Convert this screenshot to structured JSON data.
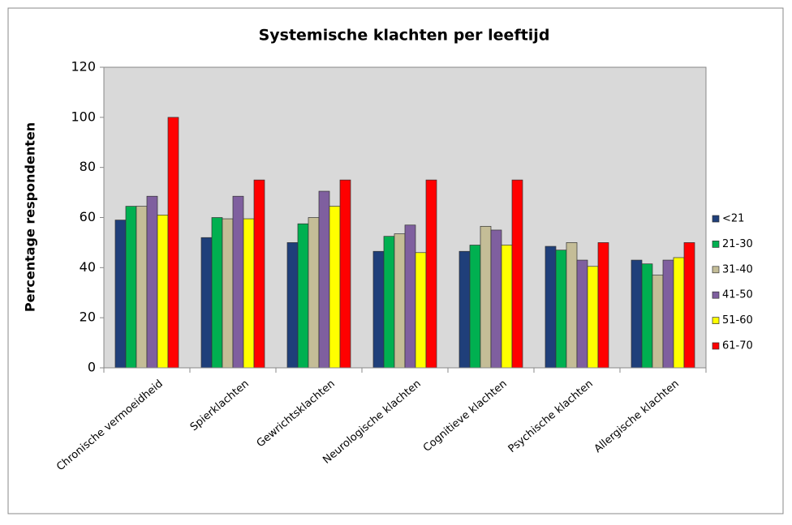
{
  "chart_data": {
    "type": "bar",
    "title": "Systemische klachten per leeftijd",
    "y_label": "Percentage respondenten",
    "categories": [
      "Chronische vermoeidheid",
      "Spierklachten",
      "Gewrichtsklachten",
      "Neurologische klachten",
      "Cognitieve klachten",
      "Psychische klachten",
      "Allergische klachten"
    ],
    "series": [
      {
        "name": "<21",
        "color": "#1f3f7a",
        "values": [
          59,
          52,
          50,
          46.5,
          46.5,
          48.5,
          43
        ]
      },
      {
        "name": "21-30",
        "color": "#00b050",
        "values": [
          64.5,
          60,
          57.5,
          52.5,
          49,
          47,
          41.5
        ]
      },
      {
        "name": "31-40",
        "color": "#c4bd97",
        "values": [
          64.5,
          59.5,
          60,
          53.5,
          56.5,
          50,
          37
        ]
      },
      {
        "name": "41-50",
        "color": "#7f5f9f",
        "values": [
          68.5,
          68.5,
          70.5,
          57,
          55,
          43,
          43
        ]
      },
      {
        "name": "51-60",
        "color": "#ffff00",
        "values": [
          61,
          59.5,
          64.5,
          46,
          49,
          40.5,
          44
        ]
      },
      {
        "name": "61-70",
        "color": "#ff0000",
        "values": [
          100,
          75,
          75,
          75,
          75,
          50,
          50
        ]
      }
    ],
    "ylim": [
      0,
      120
    ],
    "yticks": [
      0,
      20,
      40,
      60,
      80,
      100,
      120
    ],
    "grid": false,
    "legend": "right"
  }
}
